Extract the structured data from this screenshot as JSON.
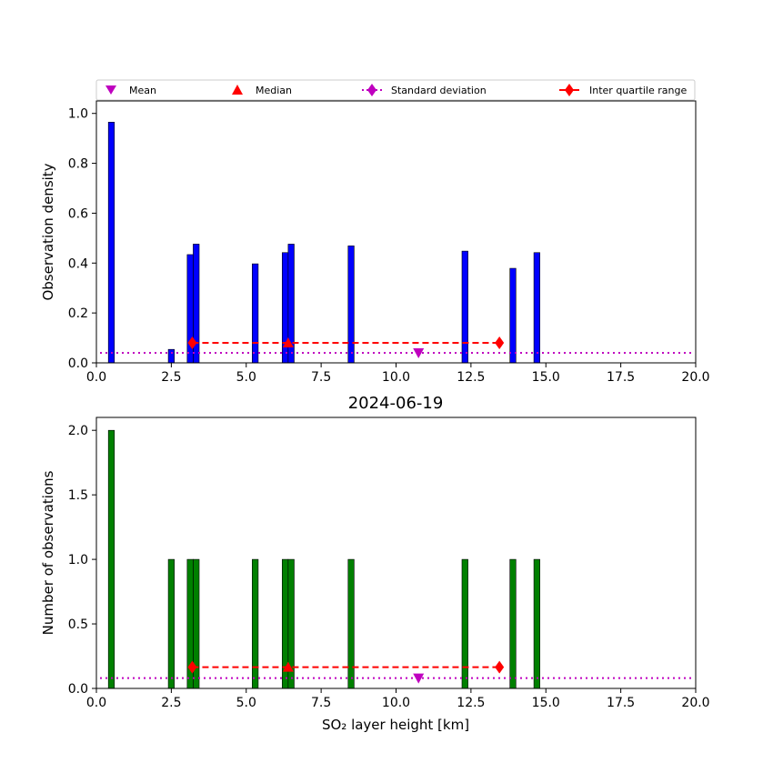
{
  "figure": {
    "title": "2024-06-19",
    "xlabel": "SO₂ layer height [km]"
  },
  "legend": {
    "placement": "top",
    "entries": [
      {
        "label": "Mean",
        "marker": "triangle-down",
        "color": "#bf00bf"
      },
      {
        "label": "Median",
        "marker": "triangle-up",
        "color": "#ff0000"
      },
      {
        "label": "Standard deviation",
        "marker": "diamond",
        "line": "dotted",
        "color": "#bf00bf"
      },
      {
        "label": "Inter quartile range",
        "marker": "diamond",
        "line": "solid",
        "color": "#ff0000"
      }
    ]
  },
  "colors": {
    "density_bars": "#0000ff",
    "count_bars": "#008000",
    "mean": "#bf00bf",
    "median": "#ff0000",
    "std": "#bf00bf",
    "iqr": "#ff0000"
  },
  "chart_data": [
    {
      "type": "bar",
      "ylabel": "Observation density",
      "xlim": [
        0,
        20
      ],
      "ylim": [
        0,
        1.05
      ],
      "xticks": [
        "0.0",
        "2.5",
        "5.0",
        "7.5",
        "10.0",
        "12.5",
        "15.0",
        "17.5",
        "20.0"
      ],
      "yticks": [
        "0.0",
        "0.2",
        "0.4",
        "0.6",
        "0.8",
        "1.0"
      ],
      "bar_width": 0.2,
      "x": [
        0.5,
        2.5,
        3.13,
        3.33,
        5.3,
        6.3,
        6.5,
        8.5,
        12.3,
        13.9,
        14.7
      ],
      "values": [
        0.965,
        0.054,
        0.434,
        0.476,
        0.397,
        0.442,
        0.476,
        0.469,
        0.448,
        0.379,
        0.442
      ],
      "mean": {
        "x": 10.75,
        "y": 0.04
      },
      "median": {
        "x": 6.4,
        "y": 0.08
      },
      "iqr": {
        "x": [
          3.2,
          13.45
        ],
        "y": 0.08
      },
      "std": {
        "y": 0.04
      }
    },
    {
      "type": "bar",
      "ylabel": "Number of observations",
      "xlim": [
        0,
        20
      ],
      "ylim": [
        0,
        2.1
      ],
      "xticks": [
        "0.0",
        "2.5",
        "5.0",
        "7.5",
        "10.0",
        "12.5",
        "15.0",
        "17.5",
        "20.0"
      ],
      "yticks": [
        "0.0",
        "0.5",
        "1.0",
        "1.5",
        "2.0"
      ],
      "bar_width": 0.2,
      "x": [
        0.5,
        2.5,
        3.13,
        3.33,
        5.3,
        6.3,
        6.5,
        8.5,
        12.3,
        13.9,
        14.7
      ],
      "values": [
        2,
        1,
        1,
        1,
        1,
        1,
        1,
        1,
        1,
        1,
        1
      ],
      "mean": {
        "x": 10.75,
        "y": 0.08
      },
      "median": {
        "x": 6.4,
        "y": 0.165
      },
      "iqr": {
        "x": [
          3.2,
          13.45
        ],
        "y": 0.165
      },
      "std": {
        "y": 0.08
      }
    }
  ]
}
